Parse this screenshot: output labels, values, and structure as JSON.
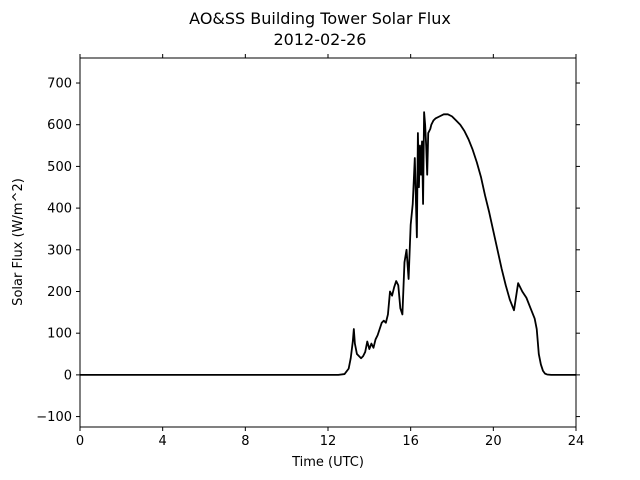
{
  "chart_data": {
    "type": "line",
    "title": "AO&SS Building Tower Solar Flux",
    "subtitle": "2012-02-26",
    "xlabel": "Time (UTC)",
    "ylabel": "Solar Flux (W/m^2)",
    "xlim": [
      0,
      24
    ],
    "ylim": [
      -125,
      760
    ],
    "xticks": [
      0,
      4,
      8,
      12,
      16,
      20,
      24
    ],
    "yticks": [
      -100,
      0,
      100,
      200,
      300,
      400,
      500,
      600,
      700
    ],
    "grid": false,
    "series": [
      {
        "color": "#000000",
        "x": [
          0,
          12.5,
          12.8,
          13.0,
          13.1,
          13.2,
          13.25,
          13.3,
          13.4,
          13.5,
          13.6,
          13.7,
          13.8,
          13.9,
          14.0,
          14.1,
          14.2,
          14.3,
          14.4,
          14.5,
          14.6,
          14.7,
          14.8,
          14.9,
          15.0,
          15.1,
          15.2,
          15.3,
          15.4,
          15.5,
          15.6,
          15.7,
          15.8,
          15.9,
          16.0,
          16.1,
          16.2,
          16.3,
          16.35,
          16.4,
          16.45,
          16.5,
          16.55,
          16.6,
          16.65,
          16.7,
          16.75,
          16.8,
          16.85,
          16.9,
          16.95,
          17.0,
          17.05,
          17.1,
          17.2,
          17.4,
          17.6,
          17.8,
          18.0,
          18.2,
          18.4,
          18.6,
          18.8,
          19.0,
          19.2,
          19.4,
          19.6,
          19.8,
          20.0,
          20.2,
          20.4,
          20.6,
          20.8,
          21.0,
          21.2,
          21.4,
          21.6,
          21.8,
          22.0,
          22.1,
          22.15,
          22.2,
          22.3,
          22.4,
          22.5,
          22.6,
          22.8,
          23.0,
          23.2,
          23.4,
          23.6,
          23.8,
          24.0
        ],
        "y": [
          0,
          0,
          2,
          15,
          40,
          80,
          110,
          75,
          50,
          45,
          40,
          45,
          55,
          80,
          62,
          75,
          65,
          85,
          95,
          110,
          125,
          130,
          125,
          145,
          200,
          190,
          210,
          225,
          215,
          160,
          145,
          270,
          300,
          230,
          360,
          410,
          520,
          330,
          580,
          450,
          550,
          480,
          560,
          410,
          630,
          600,
          550,
          480,
          580,
          585,
          590,
          600,
          605,
          610,
          615,
          620,
          625,
          625,
          620,
          610,
          600,
          585,
          565,
          540,
          510,
          475,
          430,
          390,
          345,
          300,
          255,
          215,
          180,
          155,
          220,
          200,
          185,
          160,
          135,
          110,
          80,
          50,
          25,
          10,
          3,
          1,
          0,
          0,
          0,
          0,
          0,
          0,
          0
        ]
      }
    ]
  }
}
